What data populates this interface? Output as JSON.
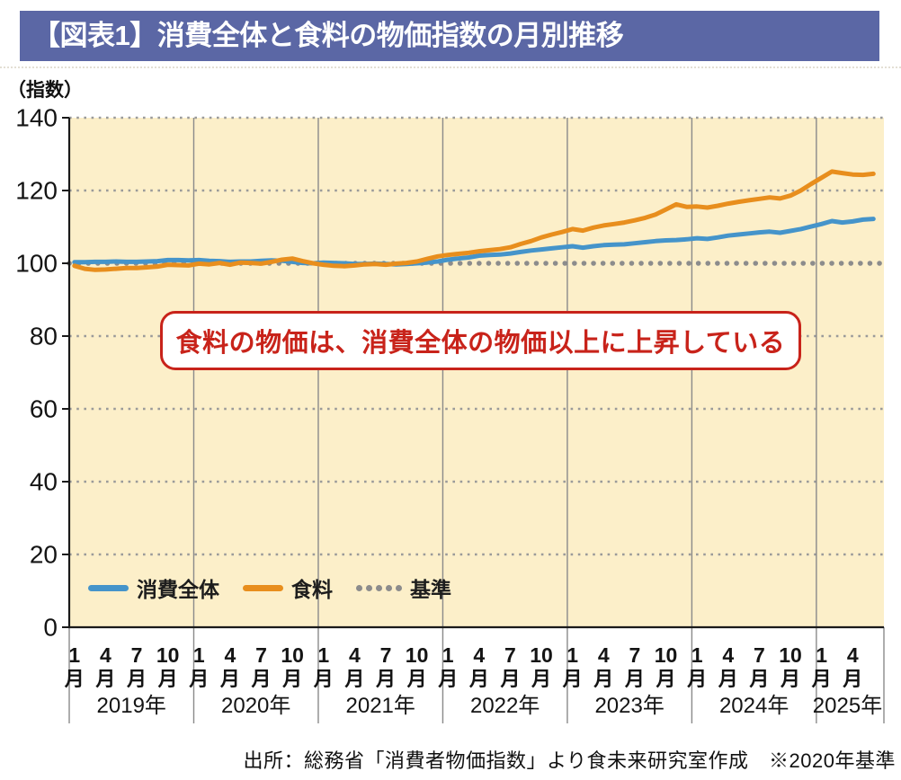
{
  "header": {
    "title": "【図表1】消費全体と食料の物価指数の月別推移"
  },
  "axis_unit_label": "（指数）",
  "annotation": {
    "text": "食料の物価は、消費全体の物価以上に上昇している"
  },
  "legend": {
    "items": [
      {
        "label": "消費全体",
        "color": "#4594CA",
        "style": "solid"
      },
      {
        "label": "食料",
        "color": "#E88E1D",
        "style": "solid"
      },
      {
        "label": "基準",
        "color": "#8C8C8C",
        "style": "dotted"
      }
    ]
  },
  "source": {
    "text": "出所：総務省「消費者物価指数」より食未来研究室作成　※2020年基準"
  },
  "colors": {
    "title_bar_bg": "#5B67A5",
    "plot_bg": "#FCEFC9",
    "accent_blue": "#4594CA",
    "accent_orange": "#E88E1D",
    "baseline_gray": "#8C8C8C",
    "grid_gray": "#9A9A9A",
    "year_divider_gray": "#8A8A8A",
    "axis_black": "#1A1A1A",
    "annotation_red": "#C8231A"
  },
  "chart_data": {
    "type": "line",
    "title": "消費全体と食料の物価指数の月別推移",
    "unit_label": "（指数）",
    "ylim": [
      0,
      140
    ],
    "yticks": [
      0,
      20,
      40,
      60,
      80,
      100,
      120,
      140
    ],
    "baseline_value": 100,
    "baseline_name": "基準",
    "month_suffix": "月",
    "x_start": "2019-01",
    "x_end": "2025-06",
    "years": [
      {
        "label": "2019年",
        "months": 12,
        "labeled_months": [
          1,
          4,
          7,
          10
        ]
      },
      {
        "label": "2020年",
        "months": 12,
        "labeled_months": [
          1,
          4,
          7,
          10
        ]
      },
      {
        "label": "2021年",
        "months": 12,
        "labeled_months": [
          1,
          4,
          7,
          10
        ]
      },
      {
        "label": "2022年",
        "months": 12,
        "labeled_months": [
          1,
          4,
          7,
          10
        ]
      },
      {
        "label": "2023年",
        "months": 12,
        "labeled_months": [
          1,
          4,
          7,
          10
        ]
      },
      {
        "label": "2024年",
        "months": 12,
        "labeled_months": [
          1,
          4,
          7,
          10
        ]
      },
      {
        "label": "2025年",
        "months": 6,
        "labeled_months": [
          1,
          4
        ]
      }
    ],
    "series": [
      {
        "name": "消費全体",
        "color": "#4594CA",
        "values": [
          100.3,
          100.3,
          100.4,
          100.4,
          100.5,
          100.4,
          100.4,
          100.5,
          100.6,
          100.9,
          100.9,
          100.8,
          100.9,
          100.7,
          100.6,
          100.4,
          100.5,
          100.5,
          100.7,
          100.8,
          100.7,
          100.4,
          100.1,
          100.0,
          100.2,
          100.1,
          100.0,
          99.8,
          99.8,
          99.9,
          99.8,
          99.7,
          99.8,
          100.0,
          100.2,
          100.5,
          101.0,
          101.3,
          101.6,
          102.1,
          102.3,
          102.4,
          102.7,
          103.1,
          103.5,
          103.8,
          104.1,
          104.4,
          104.7,
          104.3,
          104.7,
          105.0,
          105.1,
          105.2,
          105.5,
          105.8,
          106.1,
          106.3,
          106.4,
          106.6,
          106.9,
          106.7,
          107.1,
          107.6,
          107.9,
          108.2,
          108.5,
          108.7,
          108.4,
          108.9,
          109.4,
          110.1,
          110.8,
          111.6,
          111.2,
          111.5,
          112.0,
          112.2
        ]
      },
      {
        "name": "食料",
        "color": "#E88E1D",
        "values": [
          99.3,
          98.5,
          98.2,
          98.3,
          98.5,
          98.7,
          98.7,
          98.9,
          99.1,
          99.6,
          99.5,
          99.4,
          99.9,
          99.7,
          100.1,
          99.6,
          100.2,
          100.1,
          99.9,
          100.4,
          101.0,
          101.3,
          100.6,
          100.0,
          99.6,
          99.3,
          99.2,
          99.4,
          99.7,
          99.8,
          99.6,
          99.9,
          100.1,
          100.5,
          101.2,
          101.9,
          102.3,
          102.6,
          102.9,
          103.3,
          103.6,
          103.9,
          104.4,
          105.3,
          106.1,
          107.1,
          107.9,
          108.6,
          109.4,
          109.0,
          109.8,
          110.4,
          110.8,
          111.2,
          111.8,
          112.5,
          113.4,
          114.8,
          116.2,
          115.5,
          115.6,
          115.3,
          115.8,
          116.4,
          116.9,
          117.3,
          117.7,
          118.1,
          117.8,
          118.6,
          120.0,
          121.8,
          123.5,
          125.2,
          124.8,
          124.4,
          124.3,
          124.6
        ]
      }
    ]
  }
}
